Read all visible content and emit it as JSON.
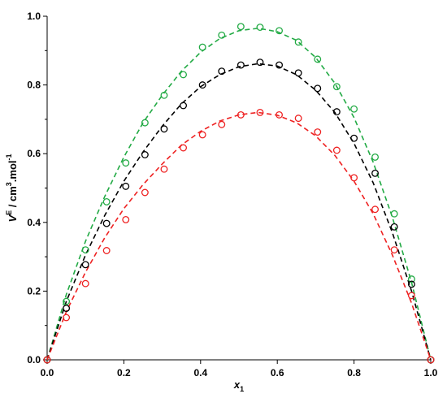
{
  "chart_data": {
    "type": "scatter",
    "title": "",
    "xlabel": {
      "symbol": "x",
      "subscript": "1"
    },
    "ylabel": {
      "symbol": "V",
      "superscript": "E",
      "unit_prefix": " / cm",
      "unit_exp": "3",
      "unit_mid": ".mol",
      "unit_exp2": "-1"
    },
    "xlim": [
      0.0,
      1.0
    ],
    "ylim": [
      0.0,
      1.0
    ],
    "xticks": [
      "0.0",
      "0.2",
      "0.4",
      "0.6",
      "0.8",
      "1.0"
    ],
    "yticks": [
      "0.0",
      "0.2",
      "0.4",
      "0.6",
      "0.8",
      "1.0"
    ],
    "grid": false,
    "legend": "none",
    "series": [
      {
        "color": "#22aa44",
        "marker": "open-circle",
        "fit_line": "dashed",
        "points": [
          [
            0.0,
            0.0
          ],
          [
            0.05,
            0.17
          ],
          [
            0.1,
            0.32
          ],
          [
            0.155,
            0.46
          ],
          [
            0.205,
            0.573
          ],
          [
            0.255,
            0.69
          ],
          [
            0.305,
            0.77
          ],
          [
            0.355,
            0.83
          ],
          [
            0.405,
            0.91
          ],
          [
            0.455,
            0.945
          ],
          [
            0.505,
            0.97
          ],
          [
            0.555,
            0.968
          ],
          [
            0.605,
            0.958
          ],
          [
            0.655,
            0.925
          ],
          [
            0.705,
            0.875
          ],
          [
            0.755,
            0.795
          ],
          [
            0.8,
            0.73
          ],
          [
            0.855,
            0.59
          ],
          [
            0.905,
            0.425
          ],
          [
            0.95,
            0.235
          ],
          [
            1.0,
            0.0
          ]
        ],
        "fit": [
          [
            0.0,
            0.0
          ],
          [
            0.05,
            0.19
          ],
          [
            0.1,
            0.345
          ],
          [
            0.15,
            0.475
          ],
          [
            0.2,
            0.59
          ],
          [
            0.25,
            0.69
          ],
          [
            0.3,
            0.77
          ],
          [
            0.35,
            0.84
          ],
          [
            0.4,
            0.895
          ],
          [
            0.45,
            0.935
          ],
          [
            0.5,
            0.958
          ],
          [
            0.55,
            0.965
          ],
          [
            0.6,
            0.955
          ],
          [
            0.65,
            0.93
          ],
          [
            0.7,
            0.88
          ],
          [
            0.75,
            0.805
          ],
          [
            0.8,
            0.705
          ],
          [
            0.85,
            0.575
          ],
          [
            0.9,
            0.415
          ],
          [
            0.95,
            0.225
          ],
          [
            1.0,
            0.0
          ]
        ]
      },
      {
        "color": "#000000",
        "marker": "open-circle",
        "fit_line": "dashed",
        "points": [
          [
            0.0,
            0.0
          ],
          [
            0.05,
            0.15
          ],
          [
            0.1,
            0.277
          ],
          [
            0.155,
            0.397
          ],
          [
            0.205,
            0.505
          ],
          [
            0.255,
            0.597
          ],
          [
            0.305,
            0.672
          ],
          [
            0.355,
            0.74
          ],
          [
            0.405,
            0.8
          ],
          [
            0.455,
            0.84
          ],
          [
            0.505,
            0.858
          ],
          [
            0.555,
            0.866
          ],
          [
            0.605,
            0.858
          ],
          [
            0.655,
            0.835
          ],
          [
            0.705,
            0.79
          ],
          [
            0.755,
            0.722
          ],
          [
            0.8,
            0.645
          ],
          [
            0.855,
            0.543
          ],
          [
            0.905,
            0.387
          ],
          [
            0.95,
            0.22
          ],
          [
            1.0,
            0.0
          ]
        ],
        "fit": [
          [
            0.0,
            0.0
          ],
          [
            0.05,
            0.17
          ],
          [
            0.1,
            0.305
          ],
          [
            0.15,
            0.42
          ],
          [
            0.2,
            0.52
          ],
          [
            0.25,
            0.605
          ],
          [
            0.3,
            0.68
          ],
          [
            0.35,
            0.745
          ],
          [
            0.4,
            0.795
          ],
          [
            0.45,
            0.83
          ],
          [
            0.5,
            0.853
          ],
          [
            0.55,
            0.862
          ],
          [
            0.6,
            0.855
          ],
          [
            0.65,
            0.83
          ],
          [
            0.7,
            0.785
          ],
          [
            0.75,
            0.72
          ],
          [
            0.8,
            0.63
          ],
          [
            0.85,
            0.515
          ],
          [
            0.9,
            0.37
          ],
          [
            0.95,
            0.2
          ],
          [
            1.0,
            0.0
          ]
        ]
      },
      {
        "color": "#ee2222",
        "marker": "open-circle",
        "fit_line": "dashed",
        "points": [
          [
            0.0,
            0.0
          ],
          [
            0.05,
            0.123
          ],
          [
            0.1,
            0.222
          ],
          [
            0.155,
            0.318
          ],
          [
            0.205,
            0.408
          ],
          [
            0.255,
            0.487
          ],
          [
            0.305,
            0.555
          ],
          [
            0.355,
            0.617
          ],
          [
            0.405,
            0.655
          ],
          [
            0.455,
            0.685
          ],
          [
            0.505,
            0.713
          ],
          [
            0.555,
            0.72
          ],
          [
            0.605,
            0.713
          ],
          [
            0.655,
            0.703
          ],
          [
            0.705,
            0.663
          ],
          [
            0.755,
            0.61
          ],
          [
            0.8,
            0.53
          ],
          [
            0.855,
            0.438
          ],
          [
            0.905,
            0.32
          ],
          [
            0.95,
            0.187
          ],
          [
            1.0,
            0.0
          ]
        ],
        "fit": [
          [
            0.0,
            0.0
          ],
          [
            0.05,
            0.14
          ],
          [
            0.1,
            0.255
          ],
          [
            0.15,
            0.355
          ],
          [
            0.2,
            0.44
          ],
          [
            0.25,
            0.51
          ],
          [
            0.3,
            0.57
          ],
          [
            0.35,
            0.625
          ],
          [
            0.4,
            0.665
          ],
          [
            0.45,
            0.695
          ],
          [
            0.5,
            0.713
          ],
          [
            0.55,
            0.72
          ],
          [
            0.6,
            0.712
          ],
          [
            0.65,
            0.69
          ],
          [
            0.7,
            0.652
          ],
          [
            0.75,
            0.595
          ],
          [
            0.8,
            0.52
          ],
          [
            0.85,
            0.425
          ],
          [
            0.9,
            0.305
          ],
          [
            0.95,
            0.165
          ],
          [
            1.0,
            0.0
          ]
        ]
      }
    ]
  }
}
